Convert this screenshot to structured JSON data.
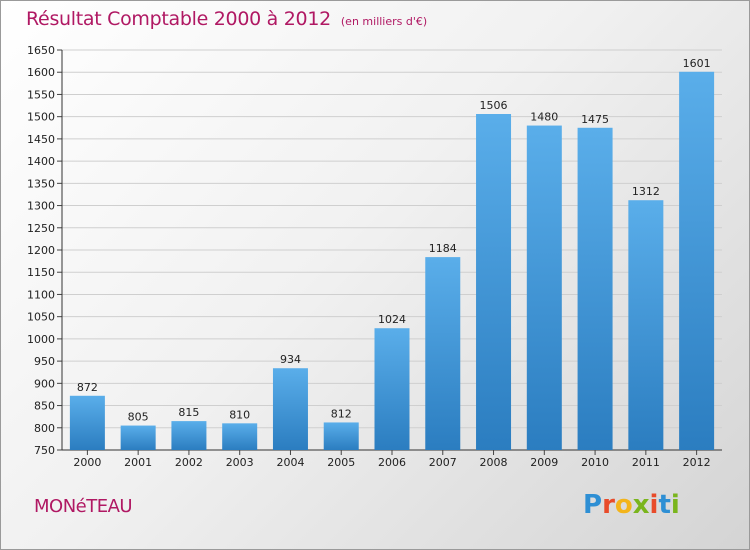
{
  "header": {
    "title": "Résultat Comptable 2000 à 2012",
    "subtitle": "(en milliers d'€)"
  },
  "footer": {
    "commune": "MONéTEAU",
    "brand": "Proxiti"
  },
  "colors": {
    "title": "#b01863",
    "bar_top": "#5aaeea",
    "bar_bottom": "#2b7dc0",
    "brand_letters": [
      "#2e8fd4",
      "#e84b2a",
      "#f3b41a",
      "#7ab51d",
      "#e84b2a",
      "#2e8fd4",
      "#7ab51d"
    ]
  },
  "chart_data": {
    "type": "bar",
    "categories": [
      "2000",
      "2001",
      "2002",
      "2003",
      "2004",
      "2005",
      "2006",
      "2007",
      "2008",
      "2009",
      "2010",
      "2011",
      "2012"
    ],
    "values": [
      872,
      805,
      815,
      810,
      934,
      812,
      1024,
      1184,
      1506,
      1480,
      1475,
      1312,
      1601
    ],
    "ylim": [
      750,
      1650
    ],
    "yticks": [
      750,
      800,
      850,
      900,
      950,
      1000,
      1050,
      1100,
      1150,
      1200,
      1250,
      1300,
      1350,
      1400,
      1450,
      1500,
      1550,
      1600,
      1650
    ],
    "grid": true,
    "xlabel": "",
    "ylabel": ""
  }
}
